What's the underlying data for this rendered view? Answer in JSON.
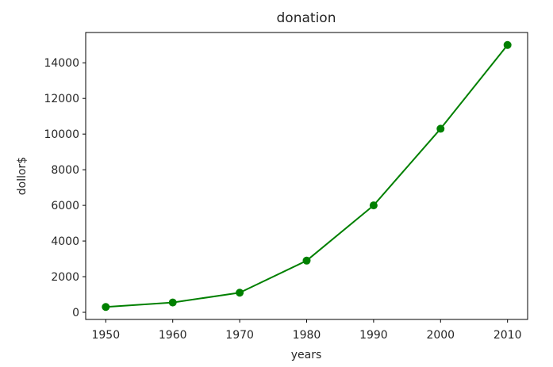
{
  "chart_data": {
    "type": "line",
    "title": "donation",
    "xlabel": "years",
    "ylabel": "dollor$",
    "x": [
      1950,
      1960,
      1970,
      1980,
      1990,
      2000,
      2010
    ],
    "series": [
      {
        "values": [
          300,
          550,
          1100,
          2900,
          6000,
          10300,
          15000
        ],
        "color": "#008000",
        "marker": "circle"
      }
    ],
    "xlim": [
      1947,
      2013
    ],
    "ylim": [
      -400,
      15700
    ],
    "xticks": [
      1950,
      1960,
      1970,
      1980,
      1990,
      2000,
      2010
    ],
    "yticks": [
      0,
      2000,
      4000,
      6000,
      8000,
      10000,
      12000,
      14000
    ],
    "xtick_labels": [
      "1950",
      "1960",
      "1970",
      "1980",
      "1990",
      "2000",
      "2010"
    ],
    "ytick_labels": [
      "0",
      "2000",
      "4000",
      "6000",
      "8000",
      "10000",
      "12000",
      "14000"
    ],
    "grid": false,
    "legend": "none"
  }
}
